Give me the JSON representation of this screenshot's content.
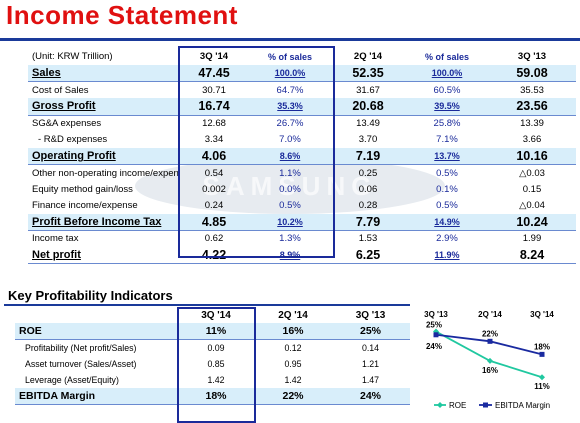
{
  "title": "Income Statement",
  "income": {
    "unit": "(Unit: KRW Trillion)",
    "headers": [
      "3Q '14",
      "% of sales",
      "2Q '14",
      "% of sales",
      "3Q '13"
    ],
    "rows": [
      {
        "label": "Sales",
        "q3_14": "47.45",
        "p1": "100.0%",
        "q2_14": "52.35",
        "p2": "100.0%",
        "q3_13": "59.08"
      },
      {
        "label": "Cost of Sales",
        "q3_14": "30.71",
        "p1": "64.7%",
        "q2_14": "31.67",
        "p2": "60.5%",
        "q3_13": "35.53"
      },
      {
        "label": "Gross Profit",
        "q3_14": "16.74",
        "p1": "35.3%",
        "q2_14": "20.68",
        "p2": "39.5%",
        "q3_13": "23.56"
      },
      {
        "label": "SG&A expenses",
        "q3_14": "12.68",
        "p1": "26.7%",
        "q2_14": "13.49",
        "p2": "25.8%",
        "q3_13": "13.39"
      },
      {
        "label": "- R&D expenses",
        "q3_14": "3.34",
        "p1": "7.0%",
        "q2_14": "3.70",
        "p2": "7.1%",
        "q3_13": "3.66"
      },
      {
        "label": "Operating Profit",
        "q3_14": "4.06",
        "p1": "8.6%",
        "q2_14": "7.19",
        "p2": "13.7%",
        "q3_13": "10.16"
      },
      {
        "label": "Other non-operating income/expense",
        "q3_14": "0.54",
        "p1": "1.1%",
        "q2_14": "0.25",
        "p2": "0.5%",
        "q3_13": "△0.03"
      },
      {
        "label": "Equity method gain/loss",
        "q3_14": "0.002",
        "p1": "0.0%",
        "q2_14": "0.06",
        "p2": "0.1%",
        "q3_13": "0.15"
      },
      {
        "label": "Finance income/expense",
        "q3_14": "0.24",
        "p1": "0.5%",
        "q2_14": "0.28",
        "p2": "0.5%",
        "q3_13": "△0.04"
      },
      {
        "label": "Profit Before Income Tax",
        "q3_14": "4.85",
        "p1": "10.2%",
        "q2_14": "7.79",
        "p2": "14.9%",
        "q3_13": "10.24"
      },
      {
        "label": "Income tax",
        "q3_14": "0.62",
        "p1": "1.3%",
        "q2_14": "1.53",
        "p2": "2.9%",
        "q3_13": "1.99"
      },
      {
        "label": "Net profit",
        "q3_14": "4.22",
        "p1": "8.9%",
        "q2_14": "6.25",
        "p2": "11.9%",
        "q3_13": "8.24"
      }
    ]
  },
  "kpi": {
    "title": "Key Profitability Indicators",
    "headers": [
      "3Q '14",
      "2Q '14",
      "3Q '13"
    ],
    "rows": [
      {
        "label": "ROE",
        "v1": "11%",
        "v2": "16%",
        "v3": "25%"
      },
      {
        "label": "Profitability (Net profit/Sales)",
        "v1": "0.09",
        "v2": "0.12",
        "v3": "0.14"
      },
      {
        "label": "Asset turnover (Sales/Asset)",
        "v1": "0.85",
        "v2": "0.95",
        "v3": "1.21"
      },
      {
        "label": "Leverage (Asset/Equity)",
        "v1": "1.42",
        "v2": "1.42",
        "v3": "1.47"
      },
      {
        "label": "EBITDA Margin",
        "v1": "18%",
        "v2": "22%",
        "v3": "24%"
      }
    ]
  },
  "chart_data": {
    "type": "line",
    "categories": [
      "3Q '13",
      "2Q '14",
      "3Q '14"
    ],
    "series": [
      {
        "name": "ROE",
        "values": [
          25,
          16,
          11
        ],
        "labels": [
          "25%",
          "16%",
          "11%"
        ],
        "color": "#20c8a0"
      },
      {
        "name": "EBITDA Margin",
        "values": [
          24,
          22,
          18
        ],
        "labels": [
          "24%",
          "22%",
          "18%"
        ],
        "color": "#1a2aa0"
      }
    ],
    "legend": "bottom"
  },
  "colors": {
    "title": "#e01010",
    "rule": "#1a3a9a",
    "highlight": "#d8eefa",
    "box": "#1a2a9a"
  }
}
